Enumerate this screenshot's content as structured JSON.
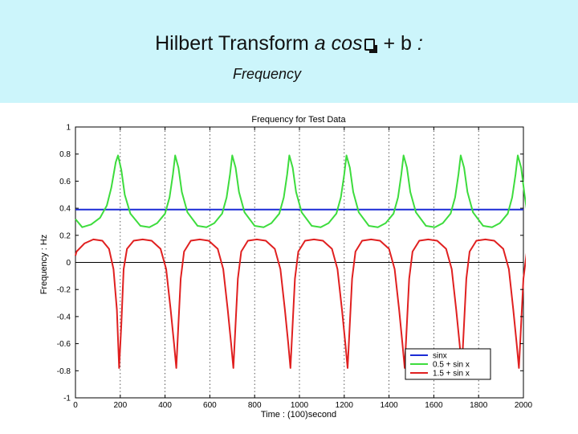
{
  "slide": {
    "title_main": "Hilbert Transform",
    "title_expr_a": "a cos",
    "title_expr_b": "+ b",
    "title_colon": ":",
    "subtitle": "Frequency"
  },
  "chart_data": {
    "type": "line",
    "title": "Frequency for Test Data",
    "xlabel": "Time : (100)second",
    "ylabel": "Frequency : Hz",
    "xlim": [
      0,
      2000
    ],
    "ylim": [
      -1,
      1
    ],
    "xticks": [
      0,
      200,
      400,
      600,
      800,
      1000,
      1200,
      1400,
      1600,
      1800,
      2000
    ],
    "yticks": [
      -1,
      -0.8,
      -0.6,
      -0.4,
      -0.2,
      0,
      0.2,
      0.4,
      0.6,
      0.8,
      1
    ],
    "ytick_labels": [
      "-1",
      "-0.8",
      "-0.6",
      "-0.4",
      "-0.2",
      "0",
      "0.2",
      "0.4",
      "0.6",
      "0.8",
      "1"
    ],
    "vertical_gridlines": [
      200,
      400,
      600,
      800,
      1000,
      1200,
      1400,
      1600,
      1800
    ],
    "horizontal_reference": 0,
    "legend_position": "bottom-right",
    "series": [
      {
        "name": "sinx",
        "color": "#1b2bd6",
        "x": [
          0,
          2000
        ],
        "y": [
          0.39,
          0.39
        ]
      },
      {
        "name": "0.5 + sin x",
        "color": "#3ddc3d",
        "x": [
          0,
          30,
          70,
          110,
          140,
          160,
          180,
          190,
          205,
          220,
          245,
          290,
          330,
          365,
          400,
          420,
          435,
          445,
          460,
          475,
          500,
          545,
          585,
          620,
          655,
          675,
          690,
          700,
          715,
          730,
          755,
          800,
          840,
          875,
          910,
          930,
          945,
          955,
          970,
          985,
          1010,
          1055,
          1095,
          1130,
          1165,
          1185,
          1200,
          1210,
          1225,
          1240,
          1265,
          1310,
          1350,
          1385,
          1420,
          1440,
          1455,
          1465,
          1480,
          1495,
          1520,
          1565,
          1605,
          1640,
          1675,
          1695,
          1710,
          1720,
          1735,
          1750,
          1775,
          1820,
          1860,
          1895,
          1930,
          1950,
          1965,
          1975,
          1990,
          2005,
          2020
        ],
        "y": [
          0.32,
          0.26,
          0.28,
          0.33,
          0.42,
          0.55,
          0.74,
          0.79,
          0.68,
          0.5,
          0.36,
          0.27,
          0.26,
          0.29,
          0.36,
          0.48,
          0.65,
          0.79,
          0.7,
          0.52,
          0.37,
          0.27,
          0.26,
          0.29,
          0.36,
          0.48,
          0.65,
          0.79,
          0.7,
          0.52,
          0.37,
          0.27,
          0.26,
          0.29,
          0.36,
          0.48,
          0.65,
          0.79,
          0.7,
          0.52,
          0.37,
          0.27,
          0.26,
          0.29,
          0.36,
          0.48,
          0.65,
          0.79,
          0.7,
          0.52,
          0.37,
          0.27,
          0.26,
          0.29,
          0.36,
          0.48,
          0.65,
          0.79,
          0.7,
          0.52,
          0.37,
          0.27,
          0.26,
          0.29,
          0.36,
          0.48,
          0.65,
          0.79,
          0.7,
          0.52,
          0.37,
          0.27,
          0.26,
          0.29,
          0.36,
          0.48,
          0.65,
          0.79,
          0.7,
          0.5,
          0.33
        ]
      },
      {
        "name": "1.5 + sin x",
        "color": "#e02020",
        "x": [
          0,
          5,
          40,
          80,
          120,
          150,
          170,
          185,
          195,
          205,
          215,
          230,
          260,
          300,
          340,
          380,
          405,
          425,
          440,
          450,
          460,
          470,
          485,
          515,
          555,
          595,
          635,
          660,
          680,
          695,
          705,
          715,
          725,
          740,
          770,
          810,
          850,
          890,
          915,
          935,
          950,
          960,
          970,
          980,
          995,
          1025,
          1065,
          1105,
          1145,
          1170,
          1190,
          1205,
          1215,
          1225,
          1235,
          1250,
          1280,
          1320,
          1360,
          1400,
          1425,
          1445,
          1460,
          1470,
          1480,
          1490,
          1505,
          1535,
          1575,
          1615,
          1655,
          1680,
          1700,
          1715,
          1725,
          1735,
          1745,
          1760,
          1790,
          1830,
          1870,
          1910,
          1935,
          1955,
          1970,
          1980,
          1990,
          2000,
          2015,
          2020
        ],
        "y": [
          0.05,
          0.08,
          0.14,
          0.17,
          0.16,
          0.1,
          -0.05,
          -0.35,
          -0.78,
          -0.45,
          -0.05,
          0.1,
          0.16,
          0.17,
          0.16,
          0.1,
          -0.05,
          -0.35,
          -0.6,
          -0.78,
          -0.45,
          -0.12,
          0.08,
          0.16,
          0.17,
          0.16,
          0.1,
          -0.05,
          -0.35,
          -0.6,
          -0.78,
          -0.45,
          -0.12,
          0.08,
          0.16,
          0.17,
          0.16,
          0.1,
          -0.05,
          -0.35,
          -0.6,
          -0.78,
          -0.45,
          -0.12,
          0.08,
          0.16,
          0.17,
          0.16,
          0.1,
          -0.05,
          -0.35,
          -0.6,
          -0.78,
          -0.45,
          -0.12,
          0.08,
          0.16,
          0.17,
          0.16,
          0.1,
          -0.05,
          -0.35,
          -0.6,
          -0.78,
          -0.45,
          -0.12,
          0.08,
          0.16,
          0.17,
          0.16,
          0.1,
          -0.05,
          -0.35,
          -0.6,
          -0.78,
          -0.45,
          -0.12,
          0.08,
          0.16,
          0.17,
          0.16,
          0.1,
          -0.05,
          -0.35,
          -0.6,
          -0.78,
          -0.45,
          -0.12,
          0.08,
          0.2
        ]
      }
    ]
  }
}
